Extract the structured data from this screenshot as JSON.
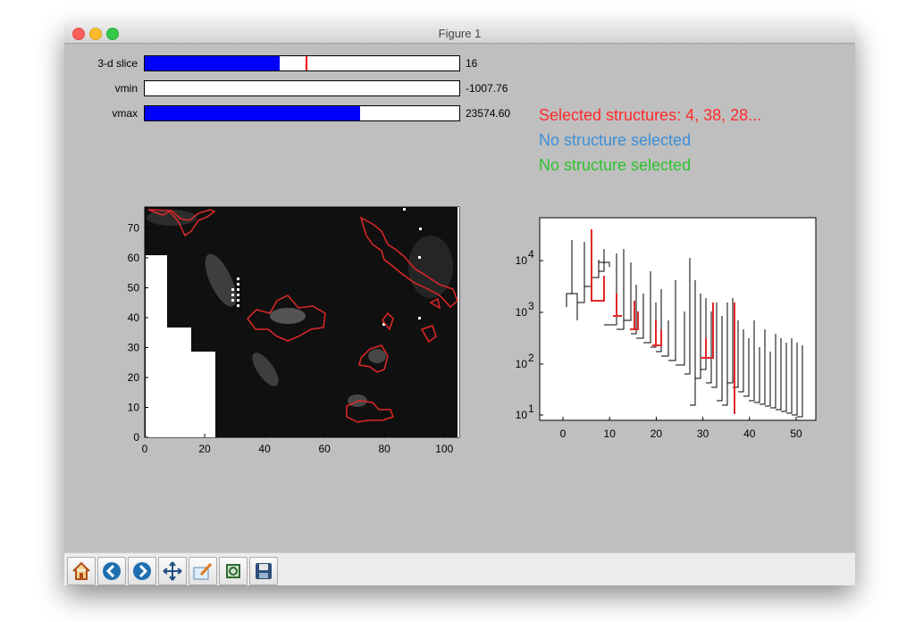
{
  "window": {
    "title": "Figure 1"
  },
  "sliders": [
    {
      "label": "3-d slice",
      "value": "16",
      "fill": 0.43,
      "marker": 0.51
    },
    {
      "label": "vmin",
      "value": "-1007.76",
      "fill": 0.0
    },
    {
      "label": "vmax",
      "value": "23574.60",
      "fill": 0.685
    }
  ],
  "selection": {
    "red": "Selected structures: 4, 38, 28...",
    "blue": "No structure selected",
    "green": "No structure selected",
    "colors": {
      "red": "#ff2b2b",
      "blue": "#3b8ed6",
      "green": "#2fc12f"
    }
  },
  "image_plot": {
    "x_ticks": [
      "0",
      "20",
      "40",
      "60",
      "80",
      "100"
    ],
    "y_ticks": [
      "0",
      "10",
      "20",
      "30",
      "40",
      "50",
      "60",
      "70"
    ]
  },
  "dendrogram": {
    "x_ticks": [
      "0",
      "10",
      "20",
      "30",
      "40",
      "50"
    ],
    "y_ticks": [
      "10",
      "10",
      "10",
      "10"
    ],
    "y_tick_exponents": [
      "1",
      "2",
      "3",
      "4"
    ]
  },
  "toolbar": {
    "buttons": [
      "home-icon",
      "back-icon",
      "forward-icon",
      "pan-icon",
      "configure-subplots-icon",
      "zoom-icon",
      "save-icon"
    ]
  }
}
